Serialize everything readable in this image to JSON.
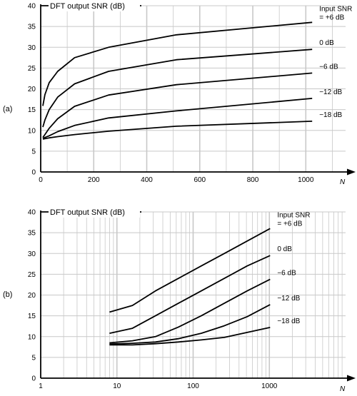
{
  "chart_data": [
    {
      "panel_label": "(a)",
      "type": "line",
      "title": "DFT output SNR (dB)",
      "xlabel": "N",
      "ylabel": "",
      "xscale": "linear",
      "xlim": [
        0,
        1150
      ],
      "ylim": [
        0,
        40
      ],
      "xticks": [
        0,
        200,
        400,
        600,
        800,
        1000
      ],
      "xtick_labels": [
        "0",
        "200",
        "400",
        "600",
        "800",
        "1000"
      ],
      "yticks": [
        0,
        5,
        10,
        15,
        20,
        25,
        30,
        35,
        40
      ],
      "ytick_labels": [
        "0",
        "5",
        "10",
        "15",
        "20",
        "25",
        "30",
        "35",
        "40"
      ],
      "grid": true,
      "grid_color": "#c8c8c8",
      "line_color": "#000000",
      "series": [
        {
          "label_lines": [
            "Input SNR",
            "= +6 dB"
          ],
          "x": [
            8,
            16,
            32,
            64,
            128,
            256,
            512,
            1024
          ],
          "y": [
            15.9,
            18.6,
            21.5,
            24.2,
            27.5,
            30.0,
            33.0,
            36.0
          ]
        },
        {
          "label_lines": [
            "0 dB"
          ],
          "x": [
            8,
            16,
            32,
            64,
            128,
            256,
            512,
            1024
          ],
          "y": [
            10.8,
            12.5,
            15.0,
            18.0,
            21.2,
            24.2,
            27.0,
            29.5
          ]
        },
        {
          "label_lines": [
            "−6 dB"
          ],
          "x": [
            8,
            16,
            32,
            64,
            128,
            256,
            512,
            1024
          ],
          "y": [
            8.3,
            9.0,
            10.5,
            12.8,
            15.8,
            18.5,
            21.0,
            23.8
          ]
        },
        {
          "label_lines": [
            "−12 dB"
          ],
          "x": [
            8,
            16,
            32,
            64,
            128,
            256,
            512,
            1024
          ],
          "y": [
            8.0,
            8.3,
            8.7,
            9.7,
            11.2,
            13.0,
            14.7,
            17.7
          ]
        },
        {
          "label_lines": [
            "−18 dB"
          ],
          "x": [
            8,
            16,
            32,
            64,
            128,
            256,
            512,
            1024
          ],
          "y": [
            7.9,
            8.0,
            8.2,
            8.5,
            9.0,
            9.8,
            11.0,
            12.2
          ]
        }
      ]
    },
    {
      "panel_label": "(b)",
      "type": "line",
      "title": "DFT output SNR (dB)",
      "xlabel": "N",
      "ylabel": "",
      "xscale": "log",
      "xlim": [
        1,
        10000
      ],
      "ylim": [
        0,
        40
      ],
      "xticks": [
        1,
        10,
        100,
        1000
      ],
      "xtick_labels": [
        "1",
        "10",
        "100",
        "1000"
      ],
      "yticks": [
        0,
        5,
        10,
        15,
        20,
        25,
        30,
        35,
        40
      ],
      "ytick_labels": [
        "0",
        "5",
        "10",
        "15",
        "20",
        "25",
        "30",
        "35",
        "40"
      ],
      "grid": true,
      "grid_color": "#c8c8c8",
      "line_color": "#000000",
      "series": [
        {
          "label_lines": [
            "Input SNR",
            "= +6 dB"
          ],
          "x": [
            8,
            16,
            32,
            64,
            128,
            256,
            512,
            1024
          ],
          "y": [
            15.9,
            17.5,
            21.0,
            24.0,
            27.0,
            30.0,
            33.0,
            36.0
          ]
        },
        {
          "label_lines": [
            "0 dB"
          ],
          "x": [
            8,
            16,
            32,
            64,
            128,
            256,
            512,
            1024
          ],
          "y": [
            10.8,
            12.0,
            15.0,
            18.0,
            21.0,
            24.0,
            27.0,
            29.5
          ]
        },
        {
          "label_lines": [
            "−6 dB"
          ],
          "x": [
            8,
            16,
            32,
            64,
            128,
            256,
            512,
            1024
          ],
          "y": [
            8.5,
            9.0,
            10.0,
            12.3,
            15.0,
            18.0,
            21.0,
            23.8
          ]
        },
        {
          "label_lines": [
            "−12 dB"
          ],
          "x": [
            8,
            16,
            32,
            64,
            128,
            256,
            512,
            1024
          ],
          "y": [
            8.2,
            8.4,
            8.7,
            9.5,
            10.8,
            12.6,
            14.8,
            17.7
          ]
        },
        {
          "label_lines": [
            "−18 dB"
          ],
          "x": [
            8,
            16,
            32,
            64,
            128,
            256,
            512,
            1024
          ],
          "y": [
            8.0,
            8.0,
            8.3,
            8.7,
            9.2,
            9.8,
            11.0,
            12.2
          ]
        }
      ]
    }
  ]
}
